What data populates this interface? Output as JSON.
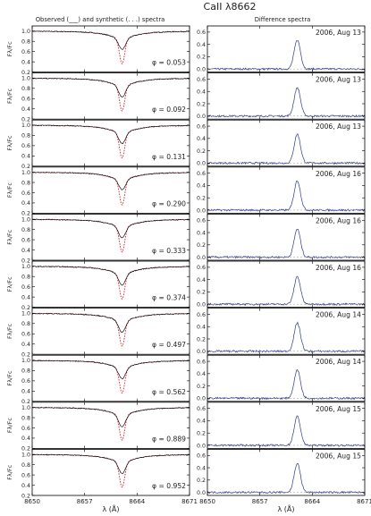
{
  "figure": {
    "title": "CaII λ8662",
    "left_header": "Observed (___) and synthetic (. . .) spectra",
    "right_header": "Difference spectra"
  },
  "chart_data": {
    "type": "line",
    "xlabel": "λ (Å)",
    "xlim": [
      8650,
      8671
    ],
    "xticks": [
      "8650",
      "8657",
      "8664",
      "8671"
    ],
    "left_ylabel": "Fλ/Fc",
    "left_ylim": [
      0.2,
      1.1
    ],
    "left_yticks": [
      "0.2",
      "0.4",
      "0.6",
      "0.8",
      "1.0"
    ],
    "right_ylim": [
      -0.05,
      0.7
    ],
    "right_yticks": [
      "0.0",
      "0.2",
      "0.4",
      "0.6"
    ],
    "line_center": 8662,
    "colors": {
      "observed": "#111111",
      "synthetic": "#e0202a",
      "difference": "#222233",
      "noise": "#2c3a8c"
    },
    "phases": [
      "φ = 0.053",
      "φ = 0.092",
      "φ = 0.131",
      "φ = 0.290",
      "φ = 0.333",
      "φ = 0.374",
      "φ = 0.497",
      "φ = 0.562",
      "φ = 0.889",
      "φ = 0.952"
    ],
    "dates": [
      "2006, Aug 13",
      "2006, Aug 13",
      "2006, Aug 13",
      "2006, Aug 16",
      "2006, Aug 16",
      "2006, Aug 16",
      "2006, Aug 14",
      "2006, Aug 14",
      "2006, Aug 15",
      "2006, Aug 15"
    ],
    "synthetic_min": [
      0.36,
      0.36,
      0.36,
      0.36,
      0.36,
      0.36,
      0.36,
      0.36,
      0.36,
      0.36
    ],
    "observed_min": [
      0.64,
      0.63,
      0.64,
      0.66,
      0.64,
      0.63,
      0.63,
      0.64,
      0.62,
      0.63
    ],
    "difference_peak": [
      0.47,
      0.46,
      0.47,
      0.48,
      0.46,
      0.45,
      0.46,
      0.46,
      0.47,
      0.47
    ]
  }
}
